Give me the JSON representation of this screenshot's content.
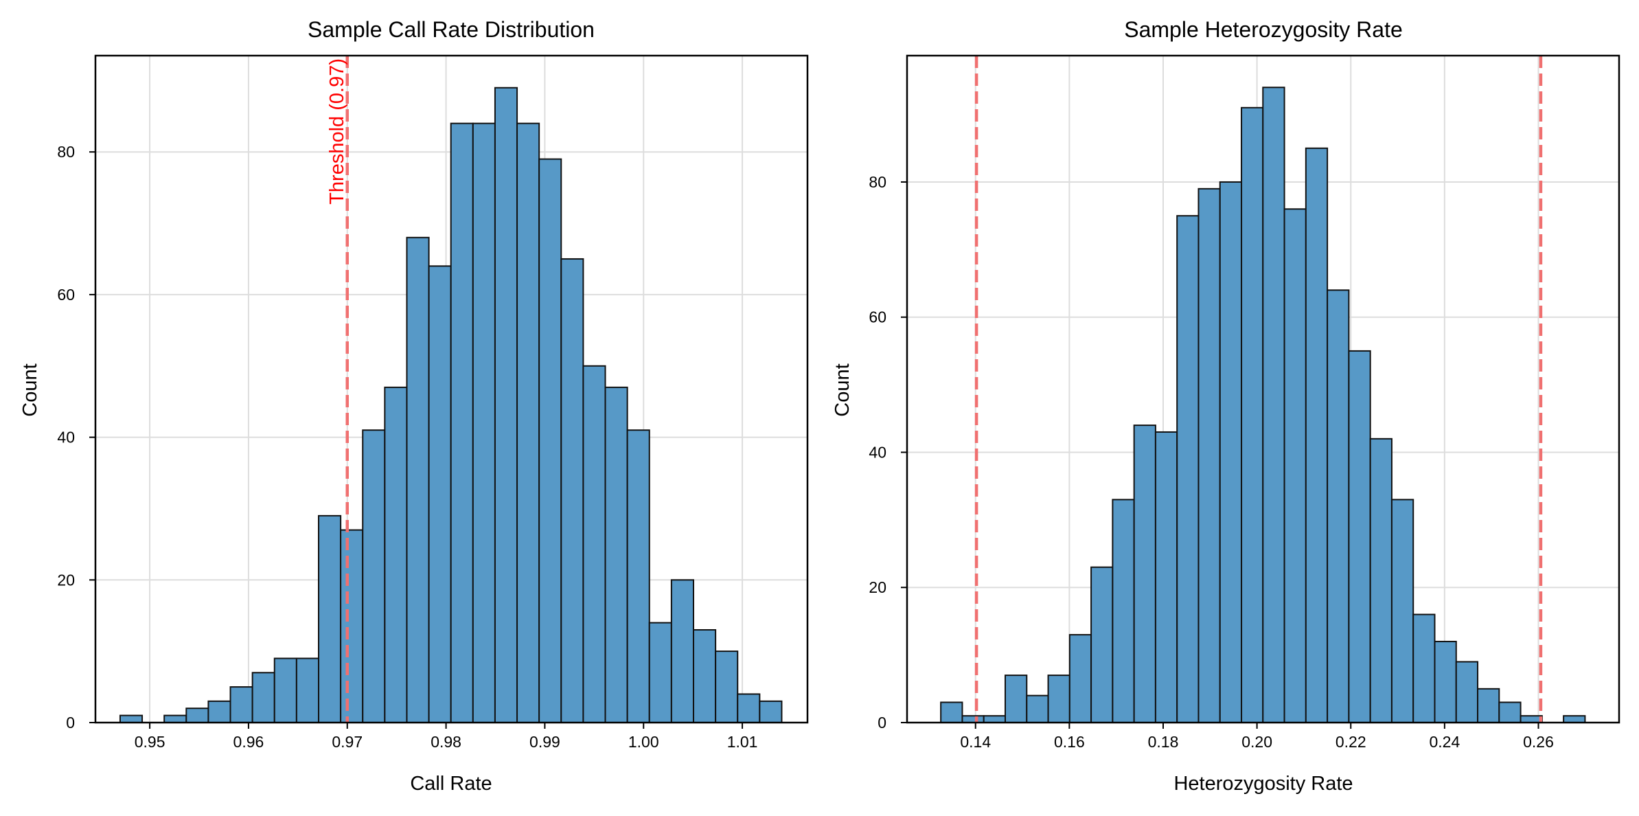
{
  "chart_data": [
    {
      "type": "bar",
      "title": "Sample Call Rate Distribution",
      "xlabel": "Call Rate",
      "ylabel": "Count",
      "xlim": [
        0.9445,
        1.0166
      ],
      "ylim": [
        0,
        93.5
      ],
      "xticks": [
        {
          "value": 0.95,
          "label": "0.95"
        },
        {
          "value": 0.96,
          "label": "0.96"
        },
        {
          "value": 0.97,
          "label": "0.97"
        },
        {
          "value": 0.98,
          "label": "0.98"
        },
        {
          "value": 0.99,
          "label": "0.99"
        },
        {
          "value": 1.0,
          "label": "1.00"
        },
        {
          "value": 1.01,
          "label": "1.01"
        }
      ],
      "yticks": [
        {
          "value": 0,
          "label": "0"
        },
        {
          "value": 20,
          "label": "20"
        },
        {
          "value": 40,
          "label": "40"
        },
        {
          "value": 60,
          "label": "60"
        },
        {
          "value": 80,
          "label": "80"
        }
      ],
      "grid": true,
      "bin_start": 0.947,
      "bin_width": 0.002233,
      "counts": [
        1,
        0,
        1,
        2,
        3,
        5,
        7,
        9,
        9,
        29,
        27,
        41,
        47,
        68,
        64,
        84,
        84,
        89,
        84,
        79,
        65,
        50,
        47,
        41,
        14,
        20,
        13,
        10,
        4,
        3
      ],
      "vlines": [
        {
          "x": 0.97,
          "label": "Threshold (0.97)"
        }
      ],
      "color": "#5799c7",
      "line_color": "#f07070"
    },
    {
      "type": "bar",
      "title": "Sample Heterozygosity Rate",
      "xlabel": "Heterozygosity Rate",
      "ylabel": "Count",
      "xlim": [
        0.1254,
        0.2772
      ],
      "ylim": [
        0,
        98.7
      ],
      "xticks": [
        {
          "value": 0.14,
          "label": "0.14"
        },
        {
          "value": 0.16,
          "label": "0.16"
        },
        {
          "value": 0.18,
          "label": "0.18"
        },
        {
          "value": 0.2,
          "label": "0.20"
        },
        {
          "value": 0.22,
          "label": "0.22"
        },
        {
          "value": 0.24,
          "label": "0.24"
        },
        {
          "value": 0.26,
          "label": "0.26"
        }
      ],
      "yticks": [
        {
          "value": 0,
          "label": "0"
        },
        {
          "value": 20,
          "label": "20"
        },
        {
          "value": 40,
          "label": "40"
        },
        {
          "value": 60,
          "label": "60"
        },
        {
          "value": 80,
          "label": "80"
        }
      ],
      "grid": true,
      "bin_start": 0.1326,
      "bin_width": 0.004578,
      "counts": [
        3,
        1,
        1,
        7,
        4,
        7,
        13,
        23,
        33,
        44,
        43,
        75,
        79,
        80,
        91,
        94,
        76,
        85,
        64,
        55,
        42,
        33,
        16,
        12,
        9,
        5,
        3,
        1,
        0,
        1
      ],
      "vlines": [
        {
          "x": 0.1402,
          "label": ""
        },
        {
          "x": 0.2605,
          "label": ""
        }
      ],
      "color": "#5799c7",
      "line_color": "#f07070"
    }
  ]
}
